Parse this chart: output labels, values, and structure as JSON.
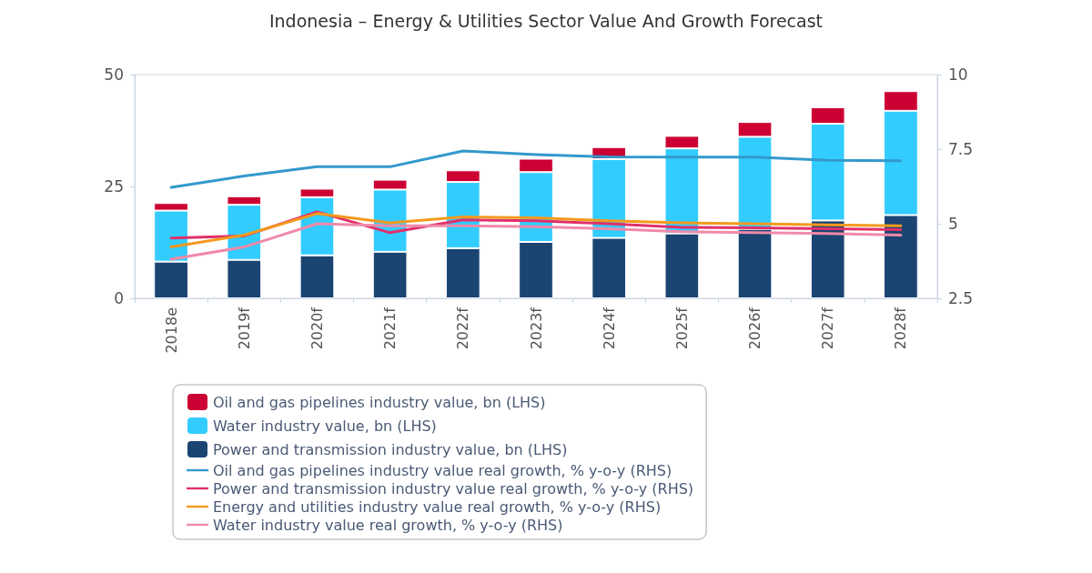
{
  "chart_data": {
    "type": "bar",
    "title": "Indonesia – Energy & Utilities Sector Value And Growth Forecast",
    "categories": [
      "2018e",
      "2019f",
      "2020f",
      "2021f",
      "2022f",
      "2023f",
      "2024f",
      "2025f",
      "2026f",
      "2027f",
      "2028f"
    ],
    "stacked": true,
    "ylim": [
      0,
      50
    ],
    "yticks": [
      0,
      25,
      50
    ],
    "y2lim": [
      2.5,
      10
    ],
    "y2ticks": [
      2.5,
      5,
      7.5,
      10
    ],
    "grid": false,
    "legend": "bottom",
    "marker": "none",
    "line_style": "solid",
    "series": [
      {
        "name": "Power and transmission industry value, bn (LHS)",
        "color": "#1a4472",
        "values": [
          8.2,
          8.6,
          9.6,
          10.4,
          11.2,
          12.6,
          13.5,
          14.5,
          15.5,
          17.4,
          18.6
        ]
      },
      {
        "name": "Water industry value, bn (LHS)",
        "color": "#33ccff",
        "values": [
          11.4,
          12.3,
          13.0,
          13.9,
          14.8,
          15.6,
          17.6,
          19.0,
          20.6,
          21.6,
          23.3
        ]
      },
      {
        "name": "Oil and gas pipelines industry value, bn (LHS)",
        "color": "#cc0033",
        "values": [
          1.7,
          1.9,
          1.9,
          2.2,
          2.6,
          3.0,
          2.7,
          2.8,
          3.3,
          3.7,
          4.4
        ]
      },
      {
        "name": "Oil and gas pipelines industry value real growth, % y-o-y (RHS)",
        "type": "line",
        "axis": "y2",
        "color": "#3399cc",
        "values": [
          6.22,
          6.6,
          6.91,
          6.91,
          7.44,
          7.32,
          7.24,
          7.23,
          7.23,
          7.13,
          7.11
        ]
      },
      {
        "name": "Power and transmission industry value real growth, % y-o-y (RHS)",
        "type": "line",
        "axis": "y2",
        "color": "#e0306a",
        "values": [
          4.52,
          4.59,
          5.4,
          4.7,
          5.13,
          5.1,
          5.0,
          4.88,
          4.86,
          4.83,
          4.8
        ]
      },
      {
        "name": "Energy and utilities industry value real growth, % y-o-y (RHS)",
        "type": "line",
        "axis": "y2",
        "color": "#f39a1e",
        "values": [
          4.22,
          4.62,
          5.34,
          5.03,
          5.23,
          5.2,
          5.1,
          5.03,
          5.0,
          4.96,
          4.93
        ]
      },
      {
        "name": "Water industry value real growth, % y-o-y (RHS)",
        "type": "line",
        "axis": "y2",
        "color": "#f08aa8",
        "values": [
          3.81,
          4.22,
          5.0,
          4.93,
          4.93,
          4.9,
          4.83,
          4.73,
          4.7,
          4.67,
          4.62
        ]
      }
    ]
  }
}
